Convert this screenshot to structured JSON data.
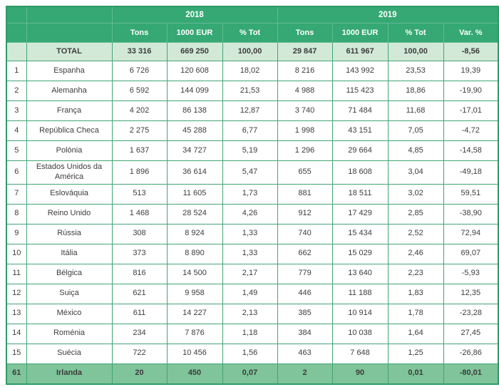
{
  "table": {
    "header": {
      "years": [
        "2018",
        "2019"
      ],
      "sub_columns": [
        "Tons",
        "1000 EUR",
        "% Tot",
        "Tons",
        "1000 EUR",
        "% Tot",
        "Var. %"
      ]
    },
    "total_row": {
      "rank": "",
      "country": "TOTAL",
      "values": [
        "33 316",
        "669 250",
        "100,00",
        "29 847",
        "611 967",
        "100,00",
        "-8,56"
      ]
    },
    "rows": [
      {
        "rank": "1",
        "country": "Espanha",
        "values": [
          "6 726",
          "120 608",
          "18,02",
          "8 216",
          "143 992",
          "23,53",
          "19,39"
        ]
      },
      {
        "rank": "2",
        "country": "Alemanha",
        "values": [
          "6 592",
          "144 099",
          "21,53",
          "4 988",
          "115 423",
          "18,86",
          "-19,90"
        ]
      },
      {
        "rank": "3",
        "country": "França",
        "values": [
          "4 202",
          "86 138",
          "12,87",
          "3 740",
          "71 484",
          "11,68",
          "-17,01"
        ]
      },
      {
        "rank": "4",
        "country": "República Checa",
        "values": [
          "2 275",
          "45 288",
          "6,77",
          "1 998",
          "43 151",
          "7,05",
          "-4,72"
        ]
      },
      {
        "rank": "5",
        "country": "Polónia",
        "values": [
          "1 637",
          "34 727",
          "5,19",
          "1 296",
          "29 664",
          "4,85",
          "-14,58"
        ]
      },
      {
        "rank": "6",
        "country": "Estados Unidos da América",
        "values": [
          "1 896",
          "36 614",
          "5,47",
          "655",
          "18 608",
          "3,04",
          "-49,18"
        ]
      },
      {
        "rank": "7",
        "country": "Eslováquia",
        "values": [
          "513",
          "11 605",
          "1,73",
          "881",
          "18 511",
          "3,02",
          "59,51"
        ]
      },
      {
        "rank": "8",
        "country": "Reino Unido",
        "values": [
          "1 468",
          "28 524",
          "4,26",
          "912",
          "17 429",
          "2,85",
          "-38,90"
        ]
      },
      {
        "rank": "9",
        "country": "Rússia",
        "values": [
          "308",
          "8 924",
          "1,33",
          "740",
          "15 434",
          "2,52",
          "72,94"
        ]
      },
      {
        "rank": "10",
        "country": "Itália",
        "values": [
          "373",
          "8 890",
          "1,33",
          "662",
          "15 029",
          "2,46",
          "69,07"
        ]
      },
      {
        "rank": "11",
        "country": "Bélgica",
        "values": [
          "816",
          "14 500",
          "2,17",
          "779",
          "13 640",
          "2,23",
          "-5,93"
        ]
      },
      {
        "rank": "12",
        "country": "Suiça",
        "values": [
          "621",
          "9 958",
          "1,49",
          "446",
          "11 188",
          "1,83",
          "12,35"
        ]
      },
      {
        "rank": "13",
        "country": "México",
        "values": [
          "611",
          "14 227",
          "2,13",
          "385",
          "10 914",
          "1,78",
          "-23,28"
        ]
      },
      {
        "rank": "14",
        "country": "Roménia",
        "values": [
          "234",
          "7 876",
          "1,18",
          "384",
          "10 038",
          "1,64",
          "27,45"
        ]
      },
      {
        "rank": "15",
        "country": "Suécia",
        "values": [
          "722",
          "10 456",
          "1,56",
          "463",
          "7 648",
          "1,25",
          "-26,86"
        ]
      },
      {
        "rank": "61",
        "country": "Irlanda",
        "values": [
          "20",
          "450",
          "0,07",
          "2",
          "90",
          "0,01",
          "-80,01"
        ],
        "highlight": true
      }
    ],
    "colors": {
      "header_green": "#35a873",
      "total_row_bg": "#d2e9d8",
      "highlight_row_bg": "#7fc49a",
      "grid_border": "#43a477",
      "text": "#3c3c3c",
      "header_text": "#ffffff"
    }
  }
}
